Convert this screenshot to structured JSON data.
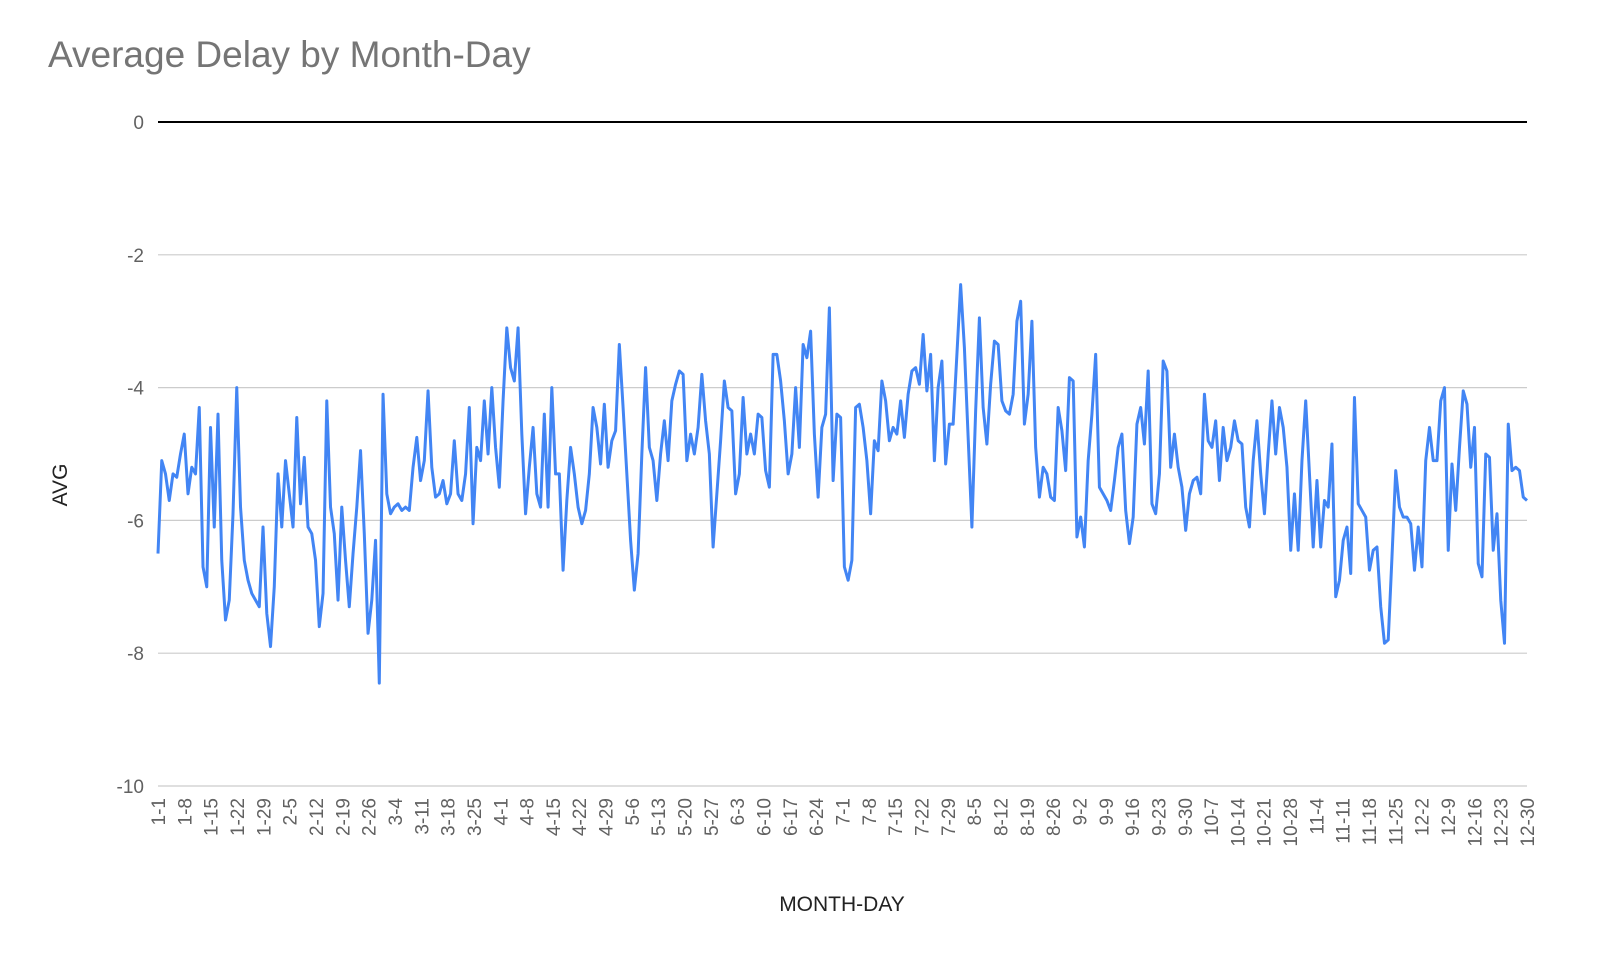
{
  "chart_data": {
    "type": "line",
    "title": "Average Delay by Month-Day",
    "xlabel": "MONTH-DAY",
    "ylabel": "AVG",
    "ylim": [
      -10,
      0
    ],
    "yticks": [
      0,
      -2,
      -4,
      -6,
      -8,
      -10
    ],
    "grid": true,
    "legend": "none",
    "series_color": "#4285f4",
    "grid_color": "#cccccc",
    "zero_line_color": "#000000",
    "x_tick_labels": [
      "1-1",
      "1-8",
      "1-15",
      "1-22",
      "1-29",
      "2-5",
      "2-12",
      "2-19",
      "2-26",
      "3-4",
      "3-11",
      "3-18",
      "3-25",
      "4-1",
      "4-8",
      "4-15",
      "4-22",
      "4-29",
      "5-6",
      "5-13",
      "5-20",
      "5-27",
      "6-3",
      "6-10",
      "6-17",
      "6-24",
      "7-1",
      "7-8",
      "7-15",
      "7-22",
      "7-29",
      "8-5",
      "8-12",
      "8-19",
      "8-26",
      "9-2",
      "9-9",
      "9-16",
      "9-23",
      "9-30",
      "10-7",
      "10-14",
      "10-21",
      "10-28",
      "11-4",
      "11-11",
      "11-18",
      "11-25",
      "12-2",
      "12-9",
      "12-16",
      "12-23",
      "12-30"
    ],
    "series": [
      {
        "values": [
          -6.5,
          -5.1,
          -5.3,
          -5.7,
          -5.3,
          -5.35,
          -5.0,
          -4.7,
          -5.6,
          -5.2,
          -5.3,
          -4.3,
          -6.7,
          -7.0,
          -4.6,
          -6.1,
          -4.4,
          -6.6,
          -7.5,
          -7.2,
          -5.9,
          -4.0,
          -5.8,
          -6.6,
          -6.9,
          -7.1,
          -7.2,
          -7.3,
          -6.1,
          -7.4,
          -7.9,
          -7.0,
          -5.3,
          -6.1,
          -5.1,
          -5.6,
          -6.1,
          -4.45,
          -5.75,
          -5.05,
          -6.1,
          -6.2,
          -6.6,
          -7.6,
          -7.1,
          -4.2,
          -5.8,
          -6.2,
          -7.2,
          -5.8,
          -6.6,
          -7.3,
          -6.5,
          -5.8,
          -4.95,
          -6.2,
          -7.7,
          -7.2,
          -6.3,
          -8.45,
          -4.1,
          -5.6,
          -5.9,
          -5.8,
          -5.75,
          -5.85,
          -5.8,
          -5.85,
          -5.2,
          -4.75,
          -5.4,
          -5.1,
          -4.05,
          -5.2,
          -5.65,
          -5.6,
          -5.4,
          -5.75,
          -5.6,
          -4.8,
          -5.6,
          -5.7,
          -5.3,
          -4.3,
          -6.05,
          -4.9,
          -5.1,
          -4.2,
          -5.0,
          -4.0,
          -4.9,
          -5.5,
          -4.2,
          -3.1,
          -3.7,
          -3.9,
          -3.1,
          -4.7,
          -5.9,
          -5.2,
          -4.6,
          -5.6,
          -5.8,
          -4.4,
          -5.8,
          -4.0,
          -5.3,
          -5.3,
          -6.75,
          -5.7,
          -4.9,
          -5.3,
          -5.8,
          -6.05,
          -5.85,
          -5.3,
          -4.3,
          -4.6,
          -5.15,
          -4.25,
          -5.2,
          -4.8,
          -4.65,
          -3.35,
          -4.3,
          -5.3,
          -6.3,
          -7.05,
          -6.5,
          -5.0,
          -3.7,
          -4.9,
          -5.1,
          -5.7,
          -5.0,
          -4.5,
          -5.1,
          -4.2,
          -3.95,
          -3.75,
          -3.8,
          -5.1,
          -4.7,
          -5.0,
          -4.6,
          -3.8,
          -4.5,
          -5.0,
          -6.4,
          -5.6,
          -4.8,
          -3.9,
          -4.3,
          -4.35,
          -5.6,
          -5.3,
          -4.15,
          -5.0,
          -4.7,
          -5.0,
          -4.4,
          -4.45,
          -5.25,
          -5.5,
          -3.5,
          -3.5,
          -3.9,
          -4.5,
          -5.3,
          -5.0,
          -4.0,
          -4.9,
          -3.35,
          -3.55,
          -3.15,
          -4.7,
          -5.65,
          -4.6,
          -4.4,
          -2.8,
          -5.4,
          -4.4,
          -4.45,
          -6.7,
          -6.9,
          -6.6,
          -4.3,
          -4.25,
          -4.6,
          -5.1,
          -5.9,
          -4.8,
          -4.95,
          -3.9,
          -4.2,
          -4.8,
          -4.6,
          -4.7,
          -4.2,
          -4.75,
          -4.1,
          -3.75,
          -3.7,
          -3.95,
          -3.2,
          -4.05,
          -3.5,
          -5.1,
          -4.0,
          -3.6,
          -5.15,
          -4.55,
          -4.55,
          -3.5,
          -2.45,
          -3.4,
          -4.75,
          -6.1,
          -4.35,
          -2.95,
          -4.3,
          -4.85,
          -3.95,
          -3.3,
          -3.35,
          -4.2,
          -4.35,
          -4.4,
          -4.1,
          -3.0,
          -2.7,
          -4.55,
          -4.1,
          -3.0,
          -4.9,
          -5.65,
          -5.2,
          -5.3,
          -5.65,
          -5.7,
          -4.3,
          -4.65,
          -5.25,
          -3.85,
          -3.9,
          -6.25,
          -5.95,
          -6.4,
          -5.1,
          -4.4,
          -3.5,
          -5.5,
          -5.6,
          -5.7,
          -5.85,
          -5.4,
          -4.9,
          -4.7,
          -5.85,
          -6.35,
          -5.95,
          -4.55,
          -4.3,
          -4.85,
          -3.75,
          -5.75,
          -5.9,
          -5.3,
          -3.6,
          -3.75,
          -5.2,
          -4.7,
          -5.2,
          -5.5,
          -6.15,
          -5.6,
          -5.4,
          -5.35,
          -5.6,
          -4.1,
          -4.8,
          -4.9,
          -4.5,
          -5.4,
          -4.6,
          -5.1,
          -4.9,
          -4.5,
          -4.8,
          -4.85,
          -5.8,
          -6.1,
          -5.1,
          -4.5,
          -5.3,
          -5.9,
          -5.0,
          -4.2,
          -5.0,
          -4.3,
          -4.6,
          -5.2,
          -6.45,
          -5.6,
          -6.45,
          -5.1,
          -4.2,
          -5.3,
          -6.4,
          -5.4,
          -6.4,
          -5.7,
          -5.8,
          -4.85,
          -7.15,
          -6.9,
          -6.3,
          -6.1,
          -6.8,
          -4.15,
          -5.75,
          -5.85,
          -5.95,
          -6.75,
          -6.45,
          -6.4,
          -7.3,
          -7.85,
          -7.8,
          -6.55,
          -5.25,
          -5.8,
          -5.95,
          -5.95,
          -6.05,
          -6.75,
          -6.1,
          -6.7,
          -5.1,
          -4.6,
          -5.1,
          -5.1,
          -4.2,
          -4.0,
          -6.45,
          -5.15,
          -5.85,
          -4.9,
          -4.05,
          -4.25,
          -5.2,
          -4.6,
          -6.65,
          -6.85,
          -5.0,
          -5.05,
          -6.45,
          -5.9,
          -7.2,
          -7.85,
          -4.55,
          -5.25,
          -5.2,
          -5.25,
          -5.65,
          -5.7
        ]
      }
    ]
  }
}
